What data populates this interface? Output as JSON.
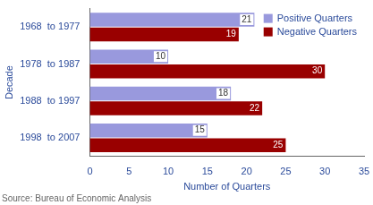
{
  "chart_data": {
    "type": "bar",
    "orientation": "horizontal",
    "x_label": "Number of Quarters",
    "y_label": "Decade",
    "source": "Source: Bureau of Economic Analysis",
    "categories": [
      "1968  to 1977",
      "1978  to 1987",
      "1988  to 1997",
      "1998  to 2007"
    ],
    "series": [
      {
        "name": "Positive Quarters",
        "color": "#9999dd",
        "values": [
          21,
          10,
          18,
          15
        ]
      },
      {
        "name": "Negative Quarters",
        "color": "#990000",
        "values": [
          19,
          30,
          22,
          25
        ]
      }
    ],
    "xlim": [
      0,
      35
    ],
    "xticks": [
      0,
      5,
      10,
      15,
      20,
      25,
      30,
      35
    ],
    "grid": false,
    "legend": "upper right",
    "data_labels": true
  }
}
